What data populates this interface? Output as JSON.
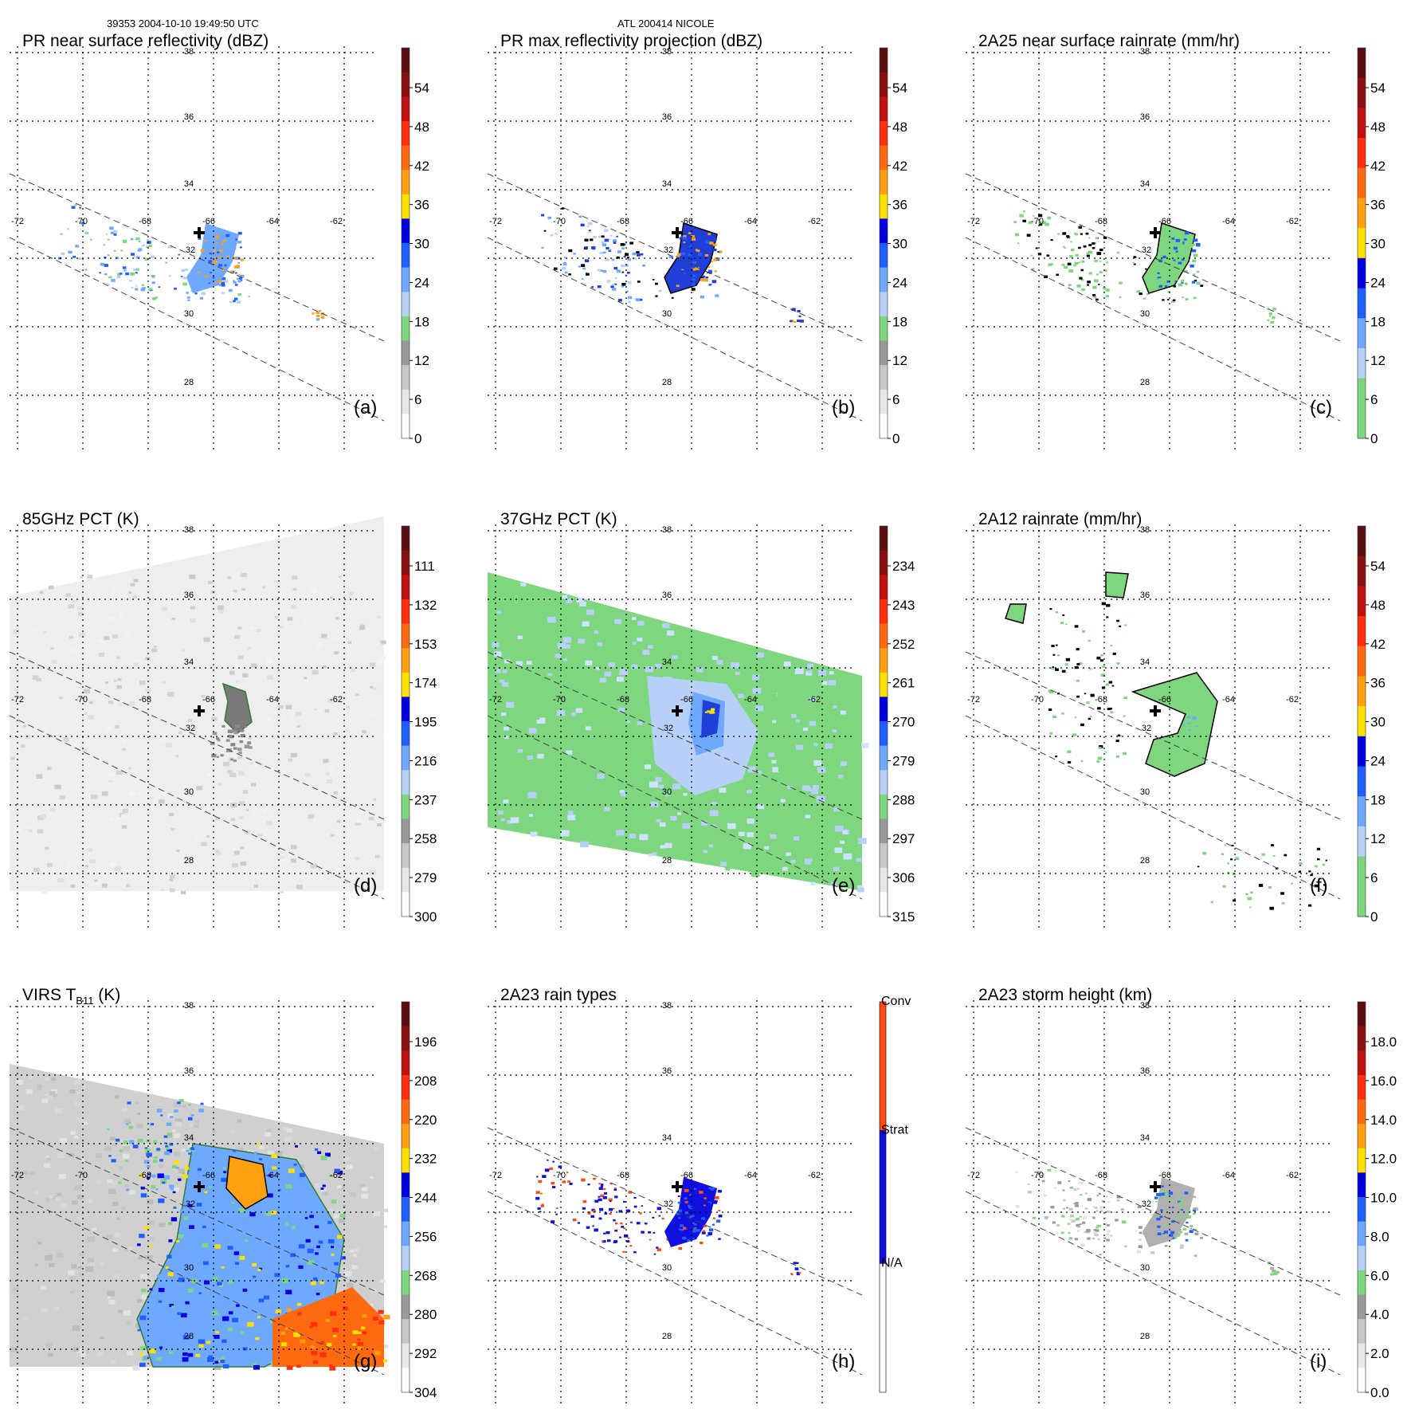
{
  "header": {
    "orbit_time": "39353 2004-10-10 19:49:50 UTC",
    "storm": "ATL 200414 NICOLE"
  },
  "colors": {
    "background": "#ffffff",
    "grid": "#000000",
    "swath_edge": "#555555",
    "green": "#7ed67e",
    "light_blue": "#a8c8f0",
    "blue": "#1f3fd8",
    "dark_blue": "#0000c8",
    "yellow": "#f0e000",
    "orange": "#ff8c00",
    "red": "#e01010",
    "dark_red": "#601010",
    "grey": "#a0a0a0"
  },
  "chart_data": [
    {
      "id": "a",
      "type": "heatmap",
      "title": "PR near surface reflectivity (dBZ)",
      "label": "(a)",
      "lon_ticks": [
        "-72",
        "-70",
        "-68",
        "-66",
        "-64",
        "-62"
      ],
      "lat_ticks": [
        "38",
        "36",
        "34",
        "32",
        "30",
        "28"
      ],
      "colorbar": {
        "ticks": [
          "54",
          "48",
          "42",
          "36",
          "30",
          "24",
          "18",
          "12",
          "6",
          "0"
        ],
        "colors": [
          "#5a1010",
          "#8a1010",
          "#c01010",
          "#ff3010",
          "#ff6a10",
          "#ffa010",
          "#ffe000",
          "#0000e0",
          "#1f5fff",
          "#6fa8ff",
          "#b8d0f8",
          "#7ed67e",
          "#9a9a9a",
          "#c8c8c8",
          "#e8e8e8",
          "#ffffff"
        ]
      },
      "content": "reflectivity"
    },
    {
      "id": "b",
      "type": "heatmap",
      "title": "PR max reflectivity projection (dBZ)",
      "label": "(b)",
      "lon_ticks": [
        "-72",
        "-70",
        "-68",
        "-66",
        "-64",
        "-62"
      ],
      "lat_ticks": [
        "38",
        "36",
        "34",
        "32",
        "30",
        "28"
      ],
      "colorbar": {
        "ticks": [
          "54",
          "48",
          "42",
          "36",
          "30",
          "24",
          "18",
          "12",
          "6",
          "0"
        ],
        "colors": [
          "#5a1010",
          "#8a1010",
          "#c01010",
          "#ff3010",
          "#ff6a10",
          "#ffa010",
          "#ffe000",
          "#0000e0",
          "#1f5fff",
          "#6fa8ff",
          "#b8d0f8",
          "#7ed67e",
          "#9a9a9a",
          "#c8c8c8",
          "#e8e8e8",
          "#ffffff"
        ]
      },
      "content": "maxrefl"
    },
    {
      "id": "c",
      "type": "heatmap",
      "title": "2A25 near surface rainrate (mm/hr)",
      "label": "(c)",
      "lon_ticks": [
        "-72",
        "-70",
        "-68",
        "-66",
        "-64",
        "-62"
      ],
      "lat_ticks": [
        "38",
        "36",
        "34",
        "32",
        "30",
        "28"
      ],
      "colorbar": {
        "ticks": [
          "54",
          "48",
          "42",
          "36",
          "30",
          "24",
          "18",
          "12",
          "6",
          "0"
        ],
        "colors": [
          "#5a1010",
          "#8a1010",
          "#c01010",
          "#ff3010",
          "#ff6a10",
          "#ffa010",
          "#ffe000",
          "#0000e0",
          "#1f5fff",
          "#6fa8ff",
          "#b8d0f8",
          "#7ed67e",
          "#7ed67e"
        ]
      },
      "content": "rainrate"
    },
    {
      "id": "d",
      "type": "heatmap",
      "title": "85GHz PCT (K)",
      "label": "(d)",
      "lon_ticks": [
        "-72",
        "-70",
        "-68",
        "-66",
        "-64",
        "-62"
      ],
      "lat_ticks": [
        "38",
        "36",
        "34",
        "32",
        "30",
        "28"
      ],
      "colorbar": {
        "ticks": [
          "111",
          "132",
          "153",
          "174",
          "195",
          "216",
          "237",
          "258",
          "279",
          "300"
        ],
        "colors": [
          "#5a1010",
          "#8a1010",
          "#c01010",
          "#ff3010",
          "#ff6a10",
          "#ffa010",
          "#ffe000",
          "#0000e0",
          "#1f5fff",
          "#6fa8ff",
          "#b8d0f8",
          "#7ed67e",
          "#9a9a9a",
          "#c8c8c8",
          "#e8e8e8",
          "#ffffff"
        ]
      },
      "content": "pct85"
    },
    {
      "id": "e",
      "type": "heatmap",
      "title": "37GHz PCT (K)",
      "label": "(e)",
      "lon_ticks": [
        "-72",
        "-70",
        "-68",
        "-66",
        "-64",
        "-62"
      ],
      "lat_ticks": [
        "38",
        "36",
        "34",
        "32",
        "30",
        "28"
      ],
      "colorbar": {
        "ticks": [
          "234",
          "243",
          "252",
          "261",
          "270",
          "279",
          "288",
          "297",
          "306",
          "315"
        ],
        "colors": [
          "#5a1010",
          "#8a1010",
          "#c01010",
          "#ff3010",
          "#ff6a10",
          "#ffa010",
          "#ffe000",
          "#0000e0",
          "#1f5fff",
          "#6fa8ff",
          "#b8d0f8",
          "#7ed67e",
          "#9a9a9a",
          "#c8c8c8",
          "#e8e8e8",
          "#ffffff"
        ]
      },
      "content": "pct37"
    },
    {
      "id": "f",
      "type": "heatmap",
      "title": "2A12 rainrate (mm/hr)",
      "label": "(f)",
      "lon_ticks": [
        "-72",
        "-70",
        "-68",
        "-66",
        "-64",
        "-62"
      ],
      "lat_ticks": [
        "38",
        "36",
        "34",
        "32",
        "30",
        "28"
      ],
      "colorbar": {
        "ticks": [
          "54",
          "48",
          "42",
          "36",
          "30",
          "24",
          "18",
          "12",
          "6",
          "0"
        ],
        "colors": [
          "#5a1010",
          "#8a1010",
          "#c01010",
          "#ff3010",
          "#ff6a10",
          "#ffa010",
          "#ffe000",
          "#0000e0",
          "#1f5fff",
          "#6fa8ff",
          "#b8d0f8",
          "#7ed67e",
          "#7ed67e"
        ]
      },
      "content": "rain2a12"
    },
    {
      "id": "g",
      "type": "heatmap",
      "title": "VIRS T",
      "title_sub": "B11",
      "title_suffix": " (K)",
      "label": "(g)",
      "lon_ticks": [
        "-72",
        "-70",
        "-68",
        "-66",
        "-64",
        "-62"
      ],
      "lat_ticks": [
        "38",
        "36",
        "34",
        "32",
        "30",
        "28"
      ],
      "colorbar": {
        "ticks": [
          "196",
          "208",
          "220",
          "232",
          "244",
          "256",
          "268",
          "280",
          "292",
          "304"
        ],
        "colors": [
          "#5a1010",
          "#8a1010",
          "#c01010",
          "#ff3010",
          "#ff6a10",
          "#ffa010",
          "#ffe000",
          "#0000e0",
          "#1f5fff",
          "#6fa8ff",
          "#b8d0f8",
          "#7ed67e",
          "#9a9a9a",
          "#c8c8c8",
          "#e8e8e8",
          "#ffffff"
        ]
      },
      "content": "virs"
    },
    {
      "id": "h",
      "type": "heatmap",
      "title": "2A23 rain types",
      "label": "(h)",
      "lon_ticks": [
        "-72",
        "-70",
        "-68",
        "-66",
        "-64",
        "-62"
      ],
      "lat_ticks": [
        "38",
        "36",
        "34",
        "32",
        "30",
        "28"
      ],
      "colorbar": {
        "ticks": [
          "Conv",
          "Strat",
          "N/A"
        ],
        "colors": [
          "#ff4a10",
          "#1010e0",
          "#ffffff"
        ],
        "categorical": true
      },
      "content": "raintype"
    },
    {
      "id": "i",
      "type": "heatmap",
      "title": "2A23 storm height (km)",
      "label": "(i)",
      "lon_ticks": [
        "-72",
        "-70",
        "-68",
        "-66",
        "-64",
        "-62"
      ],
      "lat_ticks": [
        "38",
        "36",
        "34",
        "32",
        "30",
        "28"
      ],
      "colorbar": {
        "ticks": [
          "18.0",
          "16.0",
          "14.0",
          "12.0",
          "10.0",
          "8.0",
          "6.0",
          "4.0",
          "2.0",
          "0.0"
        ],
        "colors": [
          "#5a1010",
          "#8a1010",
          "#c01010",
          "#ff3010",
          "#ff6a10",
          "#ffa010",
          "#ffe000",
          "#0000e0",
          "#1f5fff",
          "#6fa8ff",
          "#b8d0f8",
          "#7ed67e",
          "#9a9a9a",
          "#c8c8c8",
          "#e8e8e8",
          "#ffffff"
        ]
      },
      "content": "stormheight"
    }
  ]
}
